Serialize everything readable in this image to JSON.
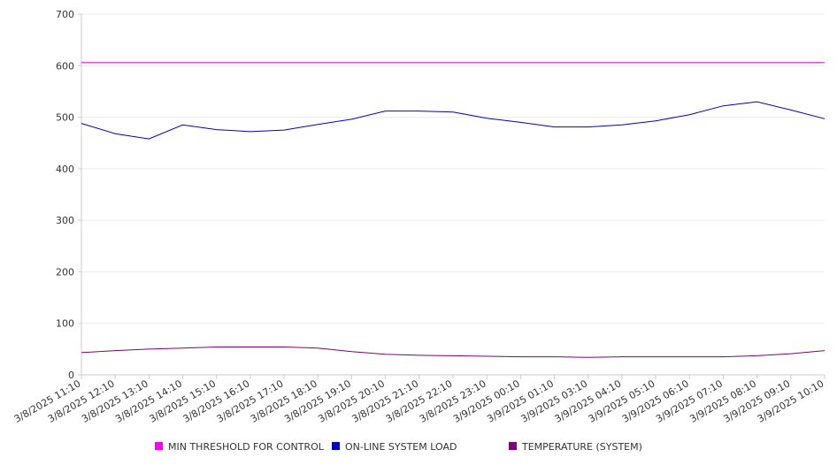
{
  "chart_data": {
    "type": "line",
    "title": "",
    "xlabel": "",
    "ylabel": "",
    "ylim": [
      0,
      700
    ],
    "yticks": [
      "0",
      "100",
      "200",
      "300",
      "400",
      "500",
      "600",
      "700"
    ],
    "xticks": [
      "3/8/2025 11:10",
      "3/8/2025 12:10",
      "3/8/2025 13:10",
      "3/8/2025 14:10",
      "3/8/2025 15:10",
      "3/8/2025 16:10",
      "3/8/2025 17:10",
      "3/8/2025 18:10",
      "3/8/2025 19:10",
      "3/8/2025 20:10",
      "3/8/2025 21:10",
      "3/8/2025 22:10",
      "3/8/2025 23:10",
      "3/9/2025 00:10",
      "3/9/2025 01:10",
      "3/9/2025 03:10",
      "3/9/2025 04:10",
      "3/9/2025 05:10",
      "3/9/2025 06:10",
      "3/9/2025 07:10",
      "3/9/2025 08:10",
      "3/9/2025 09:10",
      "3/9/2025 10:10"
    ],
    "grid": true,
    "legend_position": "bottom",
    "series": [
      {
        "name": "MIN THRESHOLD FOR CONTROL",
        "color": "#ff00ff",
        "values": [
          606,
          606,
          606,
          606,
          606,
          606,
          606,
          606,
          606,
          606,
          606,
          606,
          606,
          606,
          606,
          606,
          606,
          606,
          606,
          606,
          606,
          606,
          606
        ]
      },
      {
        "name": "ON-LINE SYSTEM LOAD",
        "color": "#0000cc",
        "values": [
          488,
          468,
          458,
          485,
          476,
          472,
          475,
          486,
          496,
          512,
          512,
          510,
          498,
          490,
          481,
          481,
          485,
          493,
          505,
          522,
          530,
          514,
          497
        ]
      },
      {
        "name": "TEMPERATURE (SYSTEM)",
        "color": "#800080",
        "values": [
          43,
          47,
          50,
          52,
          54,
          54,
          54,
          52,
          45,
          40,
          38,
          37,
          36,
          35,
          35,
          34,
          35,
          35,
          35,
          35,
          37,
          41,
          47
        ]
      }
    ]
  }
}
